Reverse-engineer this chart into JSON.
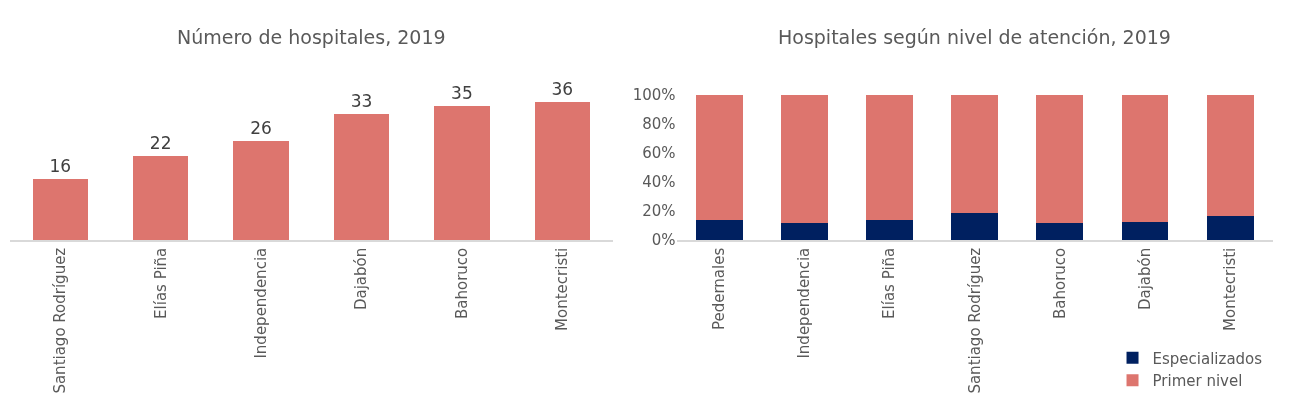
{
  "chart_data": [
    {
      "type": "bar",
      "title": "Número de hospitales, 2019",
      "categories": [
        "Santiago Rodríguez",
        "Elías Piña",
        "Independencia",
        "Dajabón",
        "Bahoruco",
        "Montecristi"
      ],
      "values": [
        16,
        22,
        26,
        33,
        35,
        36
      ],
      "color": "#dd756e",
      "data_labels": true,
      "tick_labels": "x",
      "grid": false,
      "legend": false
    },
    {
      "type": "bar",
      "title": "Hospitales según nivel de atención, 2019",
      "stacked": true,
      "categories": [
        "Pedernales",
        "Independencia",
        "Elías Piña",
        "Santiago Rodríguez",
        "Bahoruco",
        "Dajabón",
        "Montecristi"
      ],
      "series": [
        {
          "name": "Especializados",
          "color": "#002060",
          "values": [
            14,
            11.5,
            13.6,
            18.8,
            11.4,
            12.1,
            16.7
          ]
        },
        {
          "name": "Primer nivel",
          "color": "#dd756e",
          "values": [
            86,
            88.5,
            86.4,
            81.2,
            88.6,
            87.9,
            83.3
          ]
        }
      ],
      "ylim": [
        0,
        100
      ],
      "yticks": [
        {
          "value": 0,
          "label": "0%"
        },
        {
          "value": 20,
          "label": "20%"
        },
        {
          "value": 40,
          "label": "40%"
        },
        {
          "value": 60,
          "label": "60%"
        },
        {
          "value": 80,
          "label": "80%"
        },
        {
          "value": 100,
          "label": "100%"
        }
      ],
      "grid": false,
      "legend": "bottom right"
    }
  ]
}
